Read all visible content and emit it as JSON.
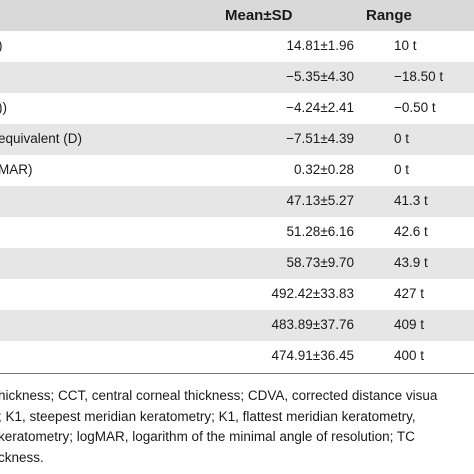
{
  "table": {
    "columns": [
      "",
      "Mean±SD",
      "Range"
    ],
    "rows": [
      {
        "label": ")",
        "mean": "14.81±1.96",
        "range": "10 t"
      },
      {
        "label": "",
        "mean": "−5.35±4.30",
        "range": "−18.50 t"
      },
      {
        "label": "))",
        "mean": "−4.24±2.41",
        "range": "−0.50 t"
      },
      {
        "label": "equivalent (D)",
        "mean": "−7.51±4.39",
        "range": "0 t"
      },
      {
        "label": "MAR)",
        "mean": "0.32±0.28",
        "range": "0 t"
      },
      {
        "label": "",
        "mean": "47.13±5.27",
        "range": "41.3 t"
      },
      {
        "label": "",
        "mean": "51.28±6.16",
        "range": "42.6 t"
      },
      {
        "label": "",
        "mean": "58.73±9.70",
        "range": "43.9 t"
      },
      {
        "label": "",
        "mean": "492.42±33.83",
        "range": "427 t"
      },
      {
        "label": "",
        "mean": "483.89±37.76",
        "range": "409 t"
      },
      {
        "label": "",
        "mean": "474.91±36.45",
        "range": "400 t"
      }
    ]
  },
  "footnote": {
    "lines": [
      "hickness; CCT, central corneal thickness; CDVA, corrected distance visua",
      "; K1, steepest meridian keratometry; K1, flattest meridian keratometry,",
      "keratometry; logMAR, logarithm of the minimal angle of resolution; TC",
      "ckness."
    ]
  }
}
